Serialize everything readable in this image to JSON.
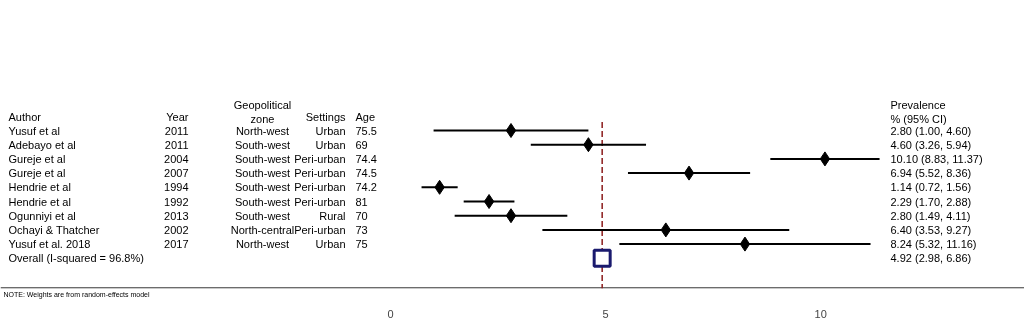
{
  "chart_data": {
    "type": "scatter",
    "orientation": "horizontal",
    "categories": [
      "Yusuf et al",
      "Adebayo et al",
      "Gureje et al",
      "Gureje et al",
      "Hendrie et al",
      "Hendrie et al",
      "Ogunniyi et al",
      "Ochayi & Thatcher",
      "Yusuf et al. 2018",
      "Overall (I-squared = 96.8%)"
    ],
    "series": [
      {
        "marker": "diamond",
        "color": "#000000",
        "values": [
          2.8,
          4.6,
          10.1,
          6.94,
          1.14,
          2.29,
          2.8,
          6.4,
          8.24,
          null
        ],
        "errors": [
          [
            1.0,
            4.6
          ],
          [
            3.26,
            5.94
          ],
          [
            8.83,
            11.37
          ],
          [
            5.52,
            8.36
          ],
          [
            0.72,
            1.56
          ],
          [
            1.7,
            2.88
          ],
          [
            1.49,
            4.11
          ],
          [
            3.53,
            9.27
          ],
          [
            5.32,
            11.16
          ],
          null
        ]
      },
      {
        "marker": "square",
        "color": "#1a1a6e",
        "values": [
          null,
          null,
          null,
          null,
          null,
          null,
          null,
          null,
          null,
          4.92
        ]
      }
    ],
    "xlim": [
      -9.07,
      14.74
    ],
    "xticks": [
      0,
      5,
      10
    ],
    "ref_lines": [
      {
        "axis": "x",
        "value": 4.92,
        "color": "#8b1a1a",
        "line_style": "dashed"
      }
    ],
    "annotations": [
      "Author",
      "Year",
      "Geopolitical\nzone",
      "Settings",
      "Age",
      "Prevalence\n% (95% CI)",
      "2011",
      "North-west",
      "Urban",
      "75.5",
      "2.80 (1.00, 4.60)",
      "2011",
      "South-west",
      "Urban",
      "69",
      "4.60 (3.26, 5.94)",
      "2004",
      "South-west",
      "Peri-urban",
      "74.4",
      "10.10 (8.83, 11.37)",
      "2007",
      "South-west",
      "Peri-urban",
      "74.5",
      "6.94 (5.52, 8.36)",
      "1994",
      "South-west",
      "Peri-urban",
      "74.2",
      "1.14 (0.72, 1.56)",
      "1992",
      "South-west",
      "Peri-urban",
      "81",
      "2.29 (1.70, 2.88)",
      "2013",
      "South-west",
      "Rural",
      "70",
      "2.80 (1.49, 4.11)",
      "2002",
      "North-central",
      "Peri-urban",
      "73",
      "6.40 (3.53, 9.27)",
      "2017",
      "North-west",
      "Urban",
      "75",
      "8.24 (5.32, 11.16)",
      "4.92 (2.98, 6.86)",
      "NOTE: Weights are from random-effects model"
    ],
    "grid": false
  }
}
